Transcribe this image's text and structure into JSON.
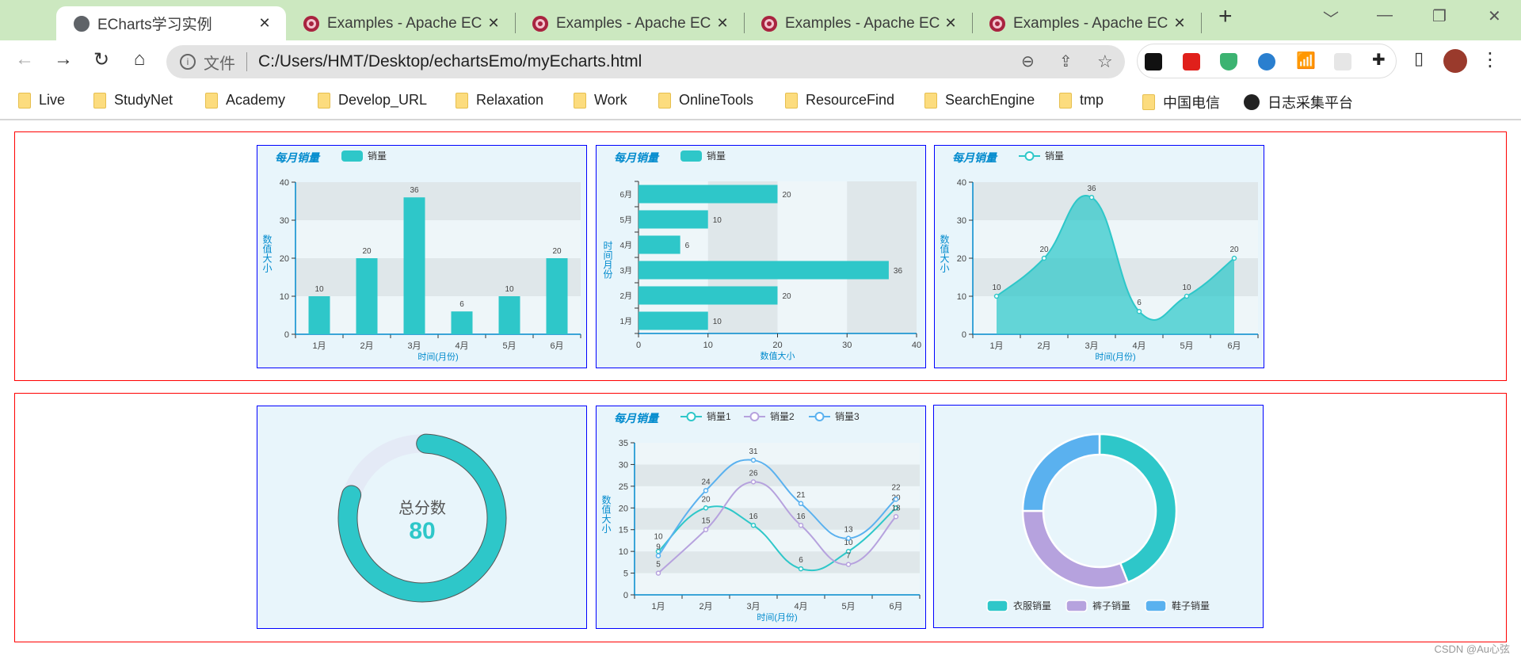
{
  "browser": {
    "tabs": [
      {
        "title": "ECharts学习实例",
        "icon": "globe-icon",
        "active": true
      },
      {
        "title": "Examples - Apache EC",
        "icon": "echarts-icon"
      },
      {
        "title": "Examples - Apache EC",
        "icon": "echarts-icon"
      },
      {
        "title": "Examples - Apache EC",
        "icon": "echarts-icon"
      },
      {
        "title": "Examples - Apache EC",
        "icon": "echarts-icon"
      }
    ],
    "new_tab": "+",
    "scheme_label": "文件",
    "url": "C:/Users/HMT/Desktop/echartsEmo/myEcharts.html",
    "bookmarks": [
      {
        "label": "Live",
        "icon": "folder-icon"
      },
      {
        "label": "StudyNet",
        "icon": "folder-icon"
      },
      {
        "label": "Academy",
        "icon": "folder-icon"
      },
      {
        "label": "Develop_URL",
        "icon": "folder-icon"
      },
      {
        "label": "Relaxation",
        "icon": "folder-icon"
      },
      {
        "label": "Work",
        "icon": "folder-icon"
      },
      {
        "label": "OnlineTools",
        "icon": "folder-icon"
      },
      {
        "label": "ResourceFind",
        "icon": "folder-icon"
      },
      {
        "label": "SearchEngine",
        "icon": "folder-icon"
      },
      {
        "label": "tmp",
        "icon": "folder-icon"
      },
      {
        "label": "中国电信",
        "icon": "folder-icon"
      },
      {
        "label": "日志采集平台",
        "icon": "globe-icon"
      }
    ]
  },
  "colors": {
    "teal": "#2ec7c9",
    "purple": "#b6a2de",
    "blue": "#5ab1ef",
    "title": "#008acd",
    "panel_border": "#0000ff",
    "row_border": "#ff0000"
  },
  "chart_data": [
    {
      "type": "bar",
      "orientation": "vertical",
      "title": "每月销量",
      "legend_position": "top-left",
      "categories": [
        "1月",
        "2月",
        "3月",
        "4月",
        "5月",
        "6月"
      ],
      "series": [
        {
          "name": "销量",
          "values": [
            10,
            20,
            36,
            6,
            10,
            20
          ],
          "color": "#2ec7c9"
        }
      ],
      "xlabel": "时间(月份)",
      "ylabel": "数值大小",
      "ylim": [
        0,
        40
      ],
      "yticks": [
        0,
        10,
        20,
        30,
        40
      ],
      "grid": "split-area"
    },
    {
      "type": "bar",
      "orientation": "horizontal",
      "title": "每月销量",
      "legend_position": "top-left",
      "categories": [
        "1月",
        "2月",
        "3月",
        "4月",
        "5月",
        "6月"
      ],
      "series": [
        {
          "name": "销量",
          "values": [
            10,
            20,
            36,
            6,
            10,
            20
          ],
          "color": "#2ec7c9"
        }
      ],
      "xlabel": "数值大小",
      "ylabel": "时间月份",
      "xlim": [
        0,
        40
      ],
      "xticks": [
        0,
        10,
        20,
        30,
        40
      ],
      "grid": "split-area"
    },
    {
      "type": "area",
      "smooth": true,
      "title": "每月销量",
      "legend_position": "top-left",
      "categories": [
        "1月",
        "2月",
        "3月",
        "4月",
        "5月",
        "6月"
      ],
      "series": [
        {
          "name": "销量",
          "values": [
            10,
            20,
            36,
            6,
            10,
            20
          ],
          "color": "#2ec7c9"
        }
      ],
      "xlabel": "时间(月份)",
      "ylabel": "数值大小",
      "ylim": [
        0,
        40
      ],
      "yticks": [
        0,
        10,
        20,
        30,
        40
      ],
      "grid": "split-area"
    },
    {
      "type": "gauge",
      "label": "总分数",
      "value": 80,
      "max": 100,
      "color": "#2ec7c9",
      "track_color": "#e4eaf6"
    },
    {
      "type": "line",
      "smooth": true,
      "title": "每月销量",
      "legend_position": "top-left",
      "categories": [
        "1月",
        "2月",
        "3月",
        "4月",
        "5月",
        "6月"
      ],
      "series": [
        {
          "name": "销量1",
          "values": [
            10,
            20,
            16,
            6,
            10,
            20
          ],
          "color": "#2ec7c9"
        },
        {
          "name": "销量2",
          "values": [
            5,
            15,
            26,
            16,
            7,
            18
          ],
          "color": "#b6a2de"
        },
        {
          "name": "销量3",
          "values": [
            9,
            24,
            31,
            21,
            13,
            22
          ],
          "color": "#5ab1ef"
        }
      ],
      "xlabel": "时间(月份)",
      "ylabel": "数值大小",
      "ylim": [
        0,
        35
      ],
      "yticks": [
        0,
        5,
        10,
        15,
        20,
        25,
        30,
        35
      ],
      "grid": "split-area"
    },
    {
      "type": "pie",
      "donut": true,
      "legend_position": "bottom",
      "slices": [
        {
          "name": "衣服销量",
          "value": 44,
          "color": "#2ec7c9"
        },
        {
          "name": "裤子销量",
          "value": 31,
          "color": "#b6a2de"
        },
        {
          "name": "鞋子销量",
          "value": 25,
          "color": "#5ab1ef"
        }
      ]
    }
  ],
  "watermark": "CSDN @Au心弦"
}
